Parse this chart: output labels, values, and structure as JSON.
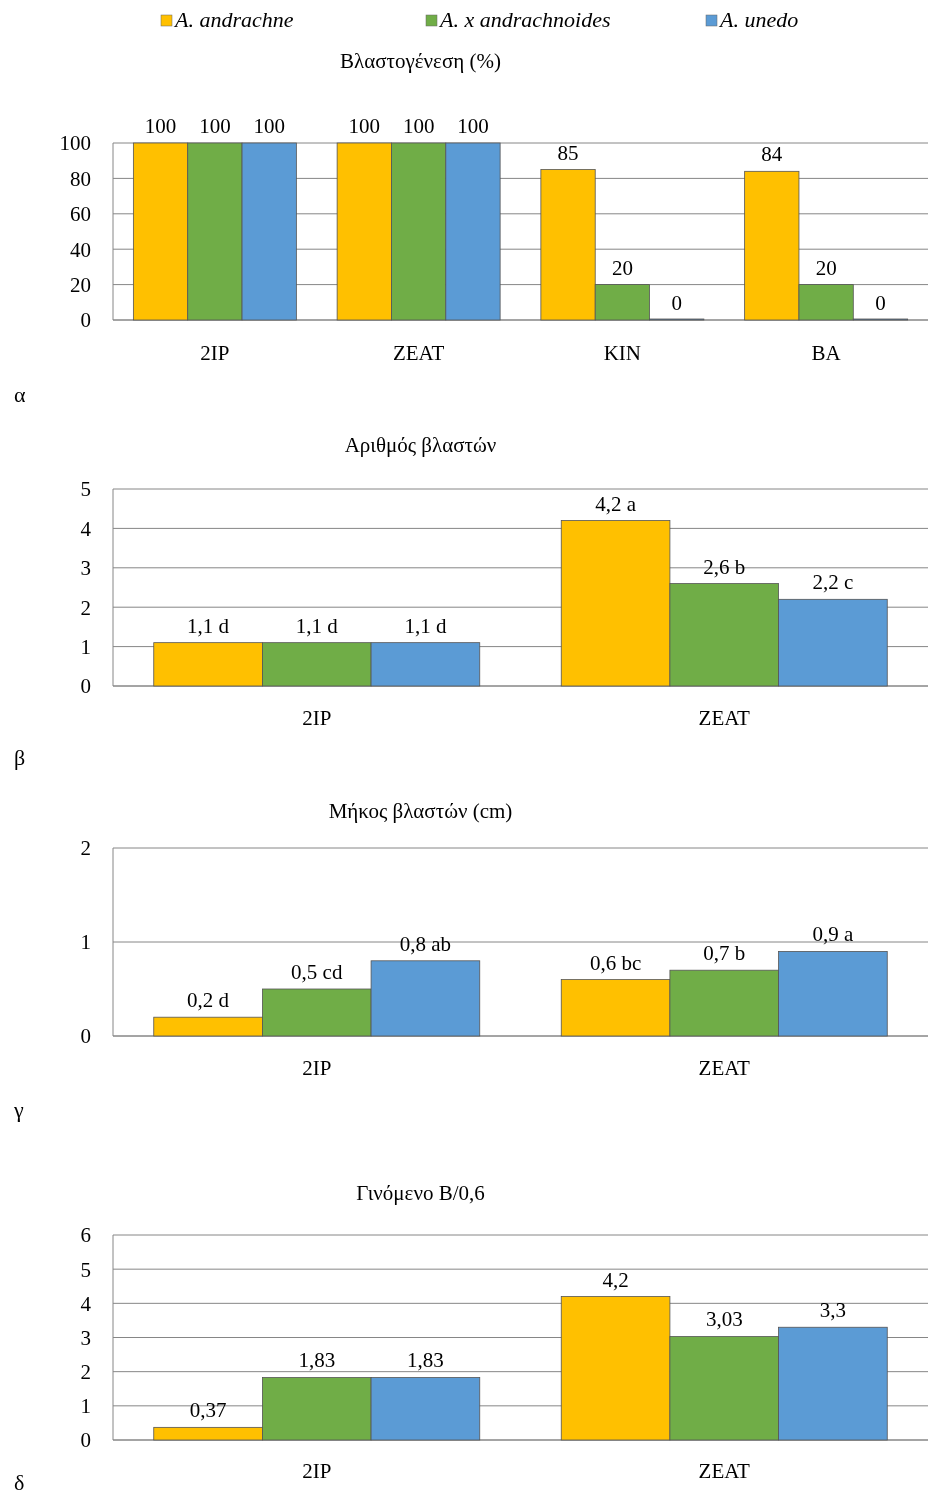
{
  "chart_data": [
    {
      "type": "bar",
      "title": "Βλαστογένεση (%)",
      "categories": [
        "2IP",
        "ZEAT",
        "KIN",
        "BA"
      ],
      "series": [
        {
          "name": "A. andrachne",
          "color": "#ffc000",
          "values": [
            100,
            100,
            85,
            84
          ]
        },
        {
          "name": "A. x andrachnoides",
          "color": "#70ad47",
          "values": [
            100,
            100,
            20,
            20
          ]
        },
        {
          "name": "A. unedo",
          "color": "#5b9bd5",
          "values": [
            100,
            100,
            0,
            0
          ]
        }
      ],
      "ylim": [
        0,
        100
      ],
      "yticks": [
        0,
        20,
        40,
        60,
        80,
        100
      ],
      "grid": "y",
      "legend": "top",
      "data_labels": true,
      "annotations": [
        "α"
      ]
    },
    {
      "type": "bar",
      "title": "Αριθμός βλαστών",
      "categories": [
        "2IP",
        "ZEAT"
      ],
      "series": [
        {
          "color": "#ffc000",
          "values": [
            1.1,
            4.2
          ],
          "value_labels": [
            "1,1 d",
            "4,2 a"
          ]
        },
        {
          "color": "#70ad47",
          "values": [
            1.1,
            2.6
          ],
          "value_labels": [
            "1,1 d",
            "2,6 b"
          ]
        },
        {
          "color": "#5b9bd5",
          "values": [
            1.1,
            2.2
          ],
          "value_labels": [
            "1,1 d",
            "2,2 c"
          ]
        }
      ],
      "ylim": [
        0,
        5
      ],
      "yticks": [
        0,
        1,
        2,
        3,
        4,
        5
      ],
      "grid": "y",
      "annotations": [
        "β"
      ]
    },
    {
      "type": "bar",
      "title": "Μήκος βλαστών (cm)",
      "categories": [
        "2IP",
        "ZEAT"
      ],
      "series": [
        {
          "color": "#ffc000",
          "values": [
            0.2,
            0.6
          ],
          "value_labels": [
            "0,2 d",
            "0,6 bc"
          ]
        },
        {
          "color": "#70ad47",
          "values": [
            0.5,
            0.7
          ],
          "value_labels": [
            "0,5 cd",
            "0,7 b"
          ]
        },
        {
          "color": "#5b9bd5",
          "values": [
            0.8,
            0.9
          ],
          "value_labels": [
            "0,8 ab",
            "0,9 a"
          ]
        }
      ],
      "ylim": [
        0,
        2
      ],
      "yticks": [
        0,
        1,
        2
      ],
      "grid": "y",
      "annotations": [
        "γ"
      ]
    },
    {
      "type": "bar",
      "title": "Γινόμενο Β/0,6",
      "categories": [
        "2IP",
        "ZEAT"
      ],
      "series": [
        {
          "color": "#ffc000",
          "values": [
            0.37,
            4.2
          ],
          "value_labels": [
            "0,37",
            "4,2"
          ]
        },
        {
          "color": "#70ad47",
          "values": [
            1.83,
            3.03
          ],
          "value_labels": [
            "1,83",
            "3,03"
          ]
        },
        {
          "color": "#5b9bd5",
          "values": [
            1.83,
            3.3
          ],
          "value_labels": [
            "1,83",
            "3,3"
          ]
        }
      ],
      "ylim": [
        0,
        6
      ],
      "yticks": [
        0,
        1,
        2,
        3,
        4,
        5,
        6
      ],
      "grid": "y",
      "annotations": [
        "δ"
      ]
    }
  ]
}
